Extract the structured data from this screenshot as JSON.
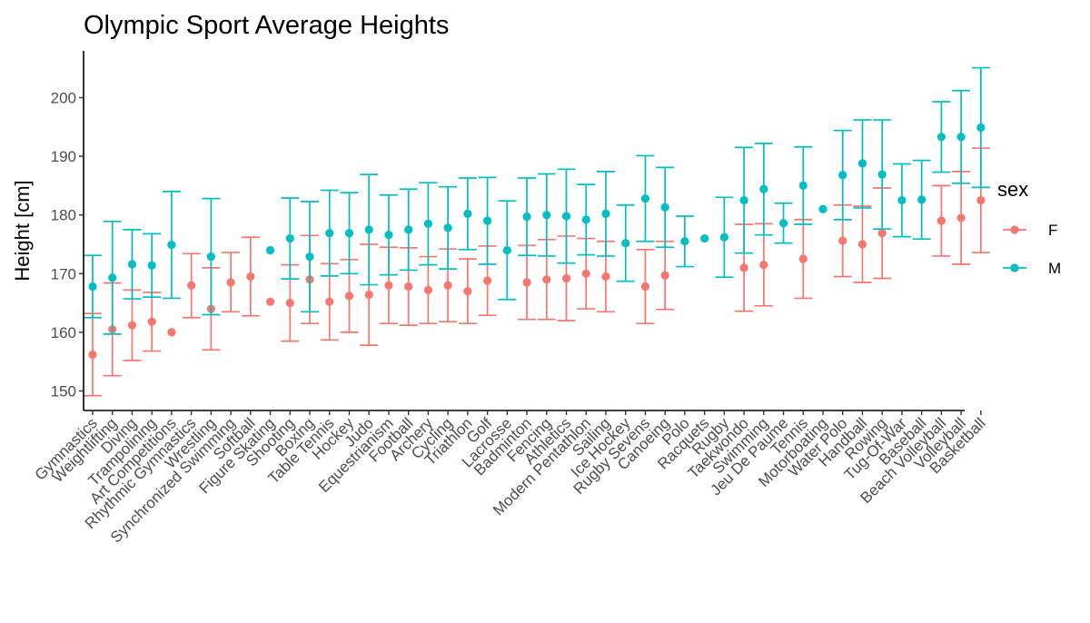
{
  "colors": {
    "F": "#F8766D",
    "M": "#00BFC4"
  },
  "chart_data": {
    "type": "scatter",
    "title": "Olympic Sport Average Heights",
    "xlabel": "",
    "ylabel": "Height [cm]",
    "ylim": [
      146,
      207
    ],
    "yticks": [
      150,
      160,
      170,
      180,
      190,
      200
    ],
    "grid": false,
    "legend": {
      "title": "sex",
      "position": "right",
      "entries": [
        "F",
        "M"
      ]
    },
    "categories": [
      "Gymnastics",
      "Weightlifting",
      "Diving",
      "Trampolining",
      "Art Competitions",
      "Rhythmic Gymnastics",
      "Wrestling",
      "Synchronized Swimming",
      "Softball",
      "Figure Skating",
      "Shooting",
      "Boxing",
      "Table Tennis",
      "Hockey",
      "Judo",
      "Equestrianism",
      "Football",
      "Archery",
      "Cycling",
      "Triathlon",
      "Golf",
      "Lacrosse",
      "Badminton",
      "Fencing",
      "Athletics",
      "Modern Pentathlon",
      "Sailing",
      "Ice Hockey",
      "Rugby Sevens",
      "Canoeing",
      "Polo",
      "Racquets",
      "Rugby",
      "Taekwondo",
      "Swimming",
      "Jeu De Paume",
      "Tennis",
      "Motorboating",
      "Water Polo",
      "Handball",
      "Rowing",
      "Tug-Of-War",
      "Baseball",
      "Beach Volleyball",
      "Volleyball",
      "Basketball"
    ],
    "series": [
      {
        "name": "F",
        "mean": [
          156.2,
          160.5,
          161.2,
          161.8,
          160.0,
          168.0,
          164.0,
          168.5,
          169.5,
          165.2,
          165.0,
          169.0,
          165.2,
          166.2,
          166.4,
          168.0,
          167.8,
          167.2,
          168.0,
          167.0,
          168.8,
          null,
          168.5,
          169.0,
          169.2,
          170.0,
          169.5,
          null,
          167.8,
          169.7,
          null,
          null,
          null,
          171.0,
          171.5,
          null,
          172.5,
          null,
          175.6,
          175.0,
          176.9,
          null,
          null,
          179.0,
          179.5,
          182.5
        ],
        "lower": [
          149.2,
          152.6,
          155.2,
          156.8,
          null,
          162.5,
          157.0,
          163.5,
          162.8,
          null,
          158.5,
          161.5,
          158.7,
          160.0,
          157.8,
          161.5,
          161.2,
          161.5,
          161.8,
          161.5,
          162.9,
          null,
          162.2,
          162.2,
          162.0,
          164.0,
          163.5,
          null,
          161.5,
          163.9,
          null,
          null,
          null,
          163.6,
          164.5,
          null,
          165.8,
          null,
          169.5,
          168.5,
          169.2,
          null,
          null,
          173.0,
          171.6,
          173.6
        ],
        "upper": [
          163.2,
          168.4,
          167.2,
          166.8,
          null,
          173.4,
          171.0,
          173.6,
          176.2,
          null,
          171.5,
          176.5,
          171.7,
          172.4,
          175.0,
          174.5,
          174.4,
          172.9,
          174.2,
          172.5,
          174.7,
          null,
          174.8,
          175.8,
          176.4,
          176.0,
          175.5,
          null,
          174.1,
          175.5,
          null,
          null,
          null,
          178.4,
          178.5,
          null,
          179.2,
          null,
          181.7,
          181.5,
          184.6,
          null,
          null,
          185.0,
          187.4,
          191.4
        ]
      },
      {
        "name": "M",
        "mean": [
          167.8,
          169.3,
          171.6,
          171.4,
          174.9,
          null,
          172.9,
          null,
          null,
          174.0,
          176.0,
          172.9,
          176.9,
          176.9,
          177.5,
          176.6,
          177.5,
          178.5,
          177.8,
          180.2,
          179.0,
          174.0,
          179.7,
          180.0,
          179.8,
          179.2,
          180.2,
          175.2,
          182.8,
          181.3,
          175.5,
          176.0,
          176.2,
          182.5,
          184.4,
          178.6,
          185.0,
          181.0,
          186.8,
          188.8,
          186.9,
          182.5,
          182.6,
          193.3,
          193.3,
          194.9
        ],
        "lower": [
          162.5,
          159.7,
          165.7,
          166.0,
          165.8,
          null,
          163.0,
          null,
          null,
          null,
          169.1,
          163.5,
          169.6,
          170.0,
          168.1,
          169.8,
          170.6,
          171.5,
          170.8,
          174.1,
          171.6,
          165.6,
          173.1,
          173.0,
          171.8,
          173.2,
          173.0,
          168.7,
          175.5,
          174.5,
          171.2,
          null,
          169.4,
          173.5,
          176.6,
          175.2,
          178.4,
          null,
          179.2,
          181.2,
          177.6,
          176.3,
          175.9,
          187.3,
          185.4,
          184.7
        ],
        "upper": [
          173.1,
          178.9,
          177.5,
          176.8,
          184.0,
          null,
          182.8,
          null,
          null,
          null,
          182.9,
          182.3,
          184.2,
          183.8,
          186.9,
          183.4,
          184.4,
          185.5,
          184.8,
          186.3,
          186.4,
          182.4,
          186.3,
          187.0,
          187.8,
          185.2,
          187.4,
          181.7,
          190.1,
          188.1,
          179.8,
          null,
          183.0,
          191.5,
          192.2,
          182.0,
          191.6,
          null,
          194.4,
          196.2,
          196.2,
          188.7,
          189.3,
          199.3,
          201.2,
          205.1
        ]
      }
    ]
  }
}
